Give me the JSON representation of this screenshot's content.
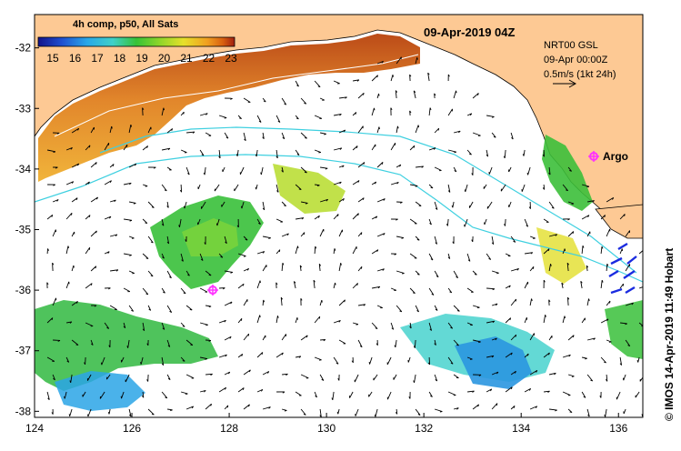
{
  "map": {
    "colorbar_title": "4h comp, p50, All Sats",
    "colorbar_ticks": [
      "15",
      "16",
      "17",
      "18",
      "19",
      "20",
      "21",
      "22",
      "23"
    ],
    "date_header": "09-Apr-2019 04Z",
    "info_lines": [
      "NRT00 GSL",
      "09-Apr 00:00Z",
      "0.5m/s (1kt 24h)"
    ],
    "argo_label": "Argo",
    "credit": "© IMOS 14-Apr-2019 11:49 Hobart",
    "lon_ticks": [
      "124",
      "126",
      "128",
      "130",
      "132",
      "134",
      "136"
    ],
    "lat_ticks": [
      "-32",
      "-33",
      "-34",
      "-35",
      "-36",
      "-37",
      "-38"
    ],
    "lon_range": [
      124,
      136.5
    ],
    "lat_range": [
      -38.1,
      -31.45
    ],
    "colors": {
      "land": "#fdc994",
      "ocean": "#ffffff",
      "argo": "#ff33ff",
      "track": "#3fd0e0",
      "colormap": [
        "#13138a",
        "#1f4fd0",
        "#29a8e8",
        "#3fd0c8",
        "#36c236",
        "#8fd62a",
        "#e6e02a",
        "#f0a020",
        "#d86010",
        "#a02010"
      ]
    }
  }
}
